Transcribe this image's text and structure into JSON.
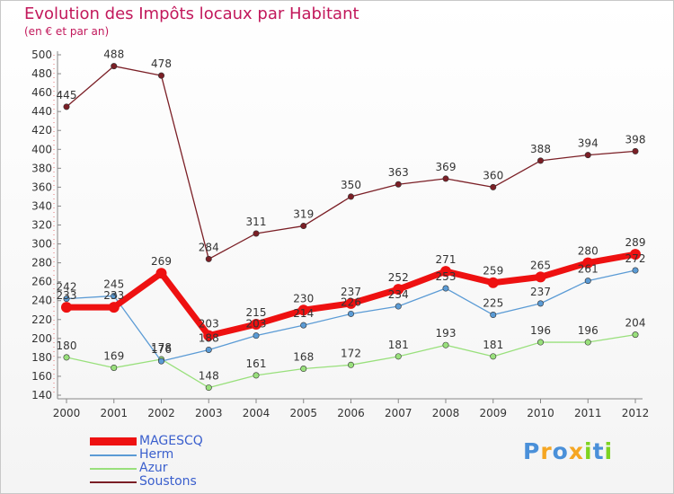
{
  "chart_data": {
    "type": "line",
    "title": "Evolution des Impôts locaux par Habitant",
    "subtitle": "(en € et par an)",
    "x": [
      "2000",
      "2001",
      "2002",
      "2003",
      "2004",
      "2005",
      "2006",
      "2007",
      "2008",
      "2009",
      "2010",
      "2011",
      "2012"
    ],
    "ylim": [
      140,
      500
    ],
    "yticks": [
      140,
      160,
      180,
      200,
      220,
      240,
      260,
      280,
      300,
      320,
      340,
      360,
      380,
      400,
      420,
      440,
      460,
      480,
      500
    ],
    "grid": false,
    "legend_position": "bottom-left",
    "series": [
      {
        "name": "Soustons",
        "color": "#7b1f26",
        "values": [
          445,
          488,
          478,
          284,
          311,
          319,
          350,
          363,
          369,
          360,
          388,
          394,
          398
        ]
      },
      {
        "name": "Azur",
        "color": "#99e07c",
        "values": [
          180,
          169,
          178,
          148,
          161,
          168,
          172,
          181,
          193,
          181,
          196,
          196,
          204
        ]
      },
      {
        "name": "Herm",
        "color": "#5b9bd5",
        "values": [
          242,
          245,
          176,
          188,
          203,
          214,
          226,
          234,
          253,
          225,
          237,
          261,
          272
        ]
      },
      {
        "name": "MAGESCQ",
        "color": "#ee1111",
        "values": [
          233,
          233,
          269,
          203,
          215,
          230,
          237,
          252,
          271,
          259,
          265,
          280,
          289
        ]
      }
    ],
    "labels": [
      {
        "series": "Soustons",
        "values": [
          "445",
          "488",
          "478",
          "284",
          "311",
          "319",
          "350",
          "363",
          "369",
          "360",
          "388",
          "394",
          "398"
        ]
      },
      {
        "series": "Azur",
        "values": [
          "180",
          "169",
          "178",
          "148",
          "161",
          "168",
          "172",
          "181",
          "193",
          "181",
          "196",
          "196",
          "204"
        ]
      },
      {
        "series": "Herm",
        "values": [
          "242",
          "245",
          "176",
          "188",
          "203",
          "214",
          "226",
          "234",
          "253",
          "225",
          "237",
          "261",
          "272"
        ]
      },
      {
        "series": "MAGESCQ",
        "values": [
          "233",
          "233",
          "269",
          "203",
          "215",
          "230",
          "237",
          "252",
          "271",
          "259",
          "265",
          "280",
          "289"
        ]
      }
    ]
  },
  "legend": {
    "items": [
      {
        "name": "MAGESCQ",
        "color": "#ee1111"
      },
      {
        "name": "Herm",
        "color": "#5b9bd5"
      },
      {
        "name": "Azur",
        "color": "#99e07c"
      },
      {
        "name": "Soustons",
        "color": "#7b1f26"
      }
    ]
  },
  "logo": {
    "letters": [
      "P",
      "r",
      "o",
      "x",
      "i",
      "t",
      "i"
    ],
    "colors": [
      "#4a90d9",
      "#f5a623",
      "#4a90d9",
      "#f5a623",
      "#7ed321",
      "#4a90d9",
      "#7ed321"
    ]
  }
}
